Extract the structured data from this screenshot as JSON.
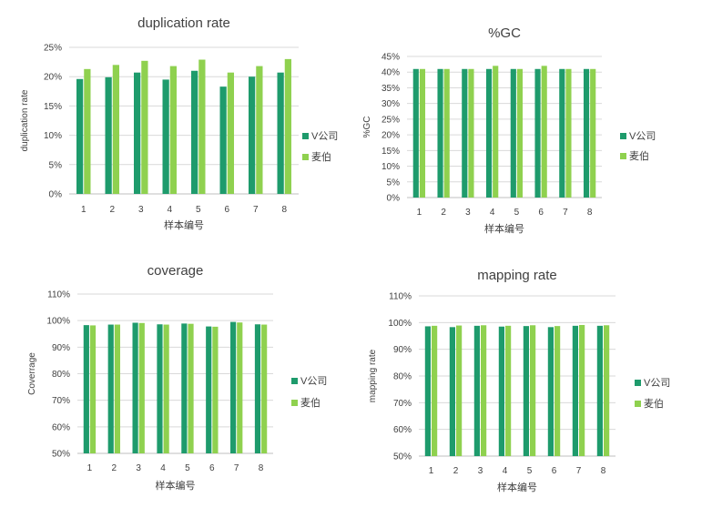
{
  "colors": {
    "v_company": "#1e9b6c",
    "maibo": "#8fd14f"
  },
  "chart_data": [
    {
      "type": "bar",
      "title": "duplication rate",
      "xlabel": "样本编号",
      "ylabel": "duplication rate",
      "categories": [
        "1",
        "2",
        "3",
        "4",
        "5",
        "6",
        "7",
        "8"
      ],
      "ylim": [
        0,
        0.25
      ],
      "yticks": [
        "0%",
        "5%",
        "10%",
        "15%",
        "20%",
        "25%"
      ],
      "series": [
        {
          "name": "V公司",
          "values": [
            0.196,
            0.199,
            0.207,
            0.195,
            0.21,
            0.183,
            0.2,
            0.207
          ]
        },
        {
          "name": "麦伯",
          "values": [
            0.213,
            0.22,
            0.227,
            0.218,
            0.229,
            0.207,
            0.218,
            0.23
          ]
        }
      ]
    },
    {
      "type": "bar",
      "title": "%GC",
      "xlabel": "样本编号",
      "ylabel": "%GC",
      "categories": [
        "1",
        "2",
        "3",
        "4",
        "5",
        "6",
        "7",
        "8"
      ],
      "ylim": [
        0,
        0.45
      ],
      "yticks": [
        "0%",
        "5%",
        "10%",
        "15%",
        "20%",
        "25%",
        "30%",
        "35%",
        "40%",
        "45%"
      ],
      "series": [
        {
          "name": "V公司",
          "values": [
            0.41,
            0.41,
            0.41,
            0.41,
            0.41,
            0.41,
            0.41,
            0.41
          ]
        },
        {
          "name": "麦伯",
          "values": [
            0.41,
            0.41,
            0.41,
            0.42,
            0.41,
            0.42,
            0.41,
            0.41
          ]
        }
      ]
    },
    {
      "type": "bar",
      "title": "coverage",
      "xlabel": "样本编号",
      "ylabel": "Coverrage",
      "categories": [
        "1",
        "2",
        "3",
        "4",
        "5",
        "6",
        "7",
        "8"
      ],
      "ylim": [
        0.5,
        1.1
      ],
      "yticks": [
        "50%",
        "60%",
        "70%",
        "80%",
        "90%",
        "100%",
        "110%"
      ],
      "series": [
        {
          "name": "V公司",
          "values": [
            0.983,
            0.985,
            0.992,
            0.986,
            0.989,
            0.978,
            0.995,
            0.986
          ]
        },
        {
          "name": "麦伯",
          "values": [
            0.982,
            0.985,
            0.991,
            0.985,
            0.988,
            0.977,
            0.993,
            0.985
          ]
        }
      ]
    },
    {
      "type": "bar",
      "title": "mapping rate",
      "xlabel": "样本编号",
      "ylabel": "mapping rate",
      "categories": [
        "1",
        "2",
        "3",
        "4",
        "5",
        "6",
        "7",
        "8"
      ],
      "ylim": [
        0.5,
        1.1
      ],
      "yticks": [
        "50%",
        "60%",
        "70%",
        "80%",
        "90%",
        "100%",
        "110%"
      ],
      "series": [
        {
          "name": "V公司",
          "values": [
            0.986,
            0.983,
            0.988,
            0.985,
            0.987,
            0.983,
            0.988,
            0.988
          ]
        },
        {
          "name": "麦伯",
          "values": [
            0.988,
            0.989,
            0.99,
            0.988,
            0.99,
            0.987,
            0.991,
            0.99
          ]
        }
      ]
    }
  ]
}
